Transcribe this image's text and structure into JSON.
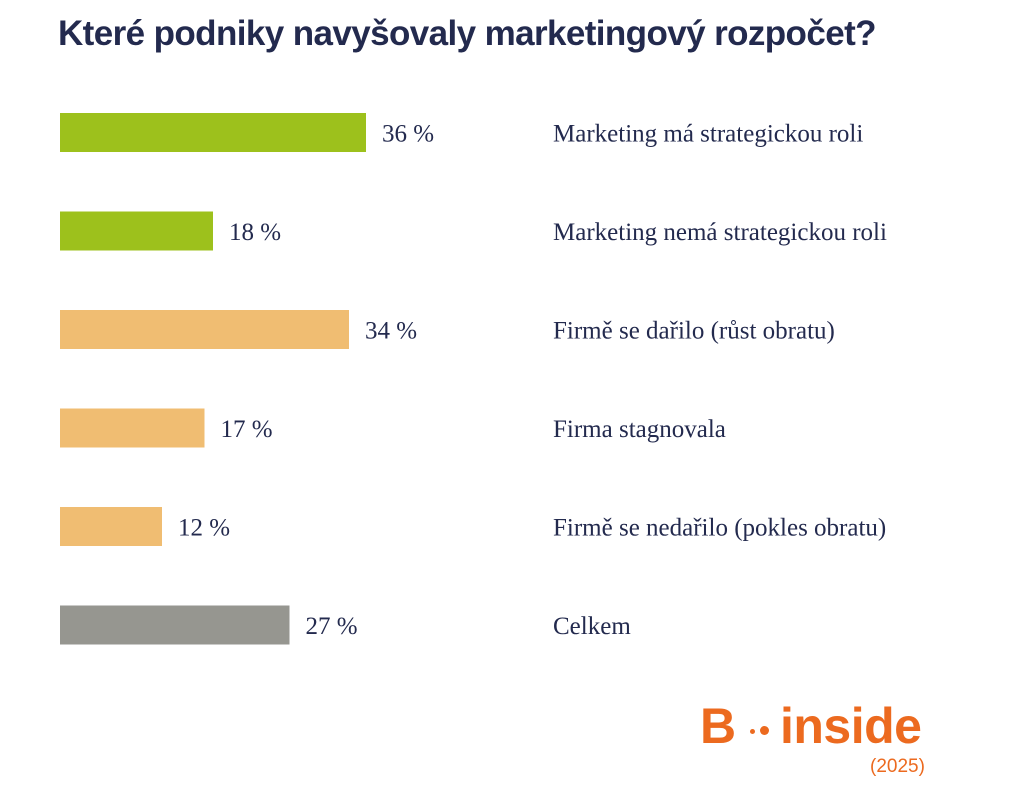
{
  "title": "Které podniky navyšovaly marketingový rozpočet?",
  "colors": {
    "text": "#232a4e",
    "green": "#9dc11c",
    "orange": "#f0bd72",
    "gray": "#969690",
    "logo": "#ec6a1f"
  },
  "chart_data": {
    "type": "bar",
    "orientation": "horizontal",
    "title": "Které podniky navyšovaly marketingový rozpočet?",
    "xlabel": "",
    "ylabel": "",
    "grid": false,
    "legend": "none",
    "xlim": [
      0,
      36
    ],
    "value_suffix": " %",
    "categories": [
      "Marketing má strategickou roli",
      "Marketing nemá strategickou roli",
      "Firmě se dařilo (růst obratu)",
      "Firma stagnovala",
      "Firmě se nedařilo (pokles obratu)",
      "Celkem"
    ],
    "values": [
      36,
      18,
      34,
      17,
      12,
      27
    ],
    "value_labels": [
      "36 %",
      "18 %",
      "34 %",
      "17 %",
      "12 %",
      "27 %"
    ],
    "bar_colors": [
      "#9dc11c",
      "#9dc11c",
      "#f0bd72",
      "#f0bd72",
      "#f0bd72",
      "#969690"
    ]
  },
  "logo": {
    "letter": "B",
    "word": "inside",
    "year": "(2025)"
  }
}
